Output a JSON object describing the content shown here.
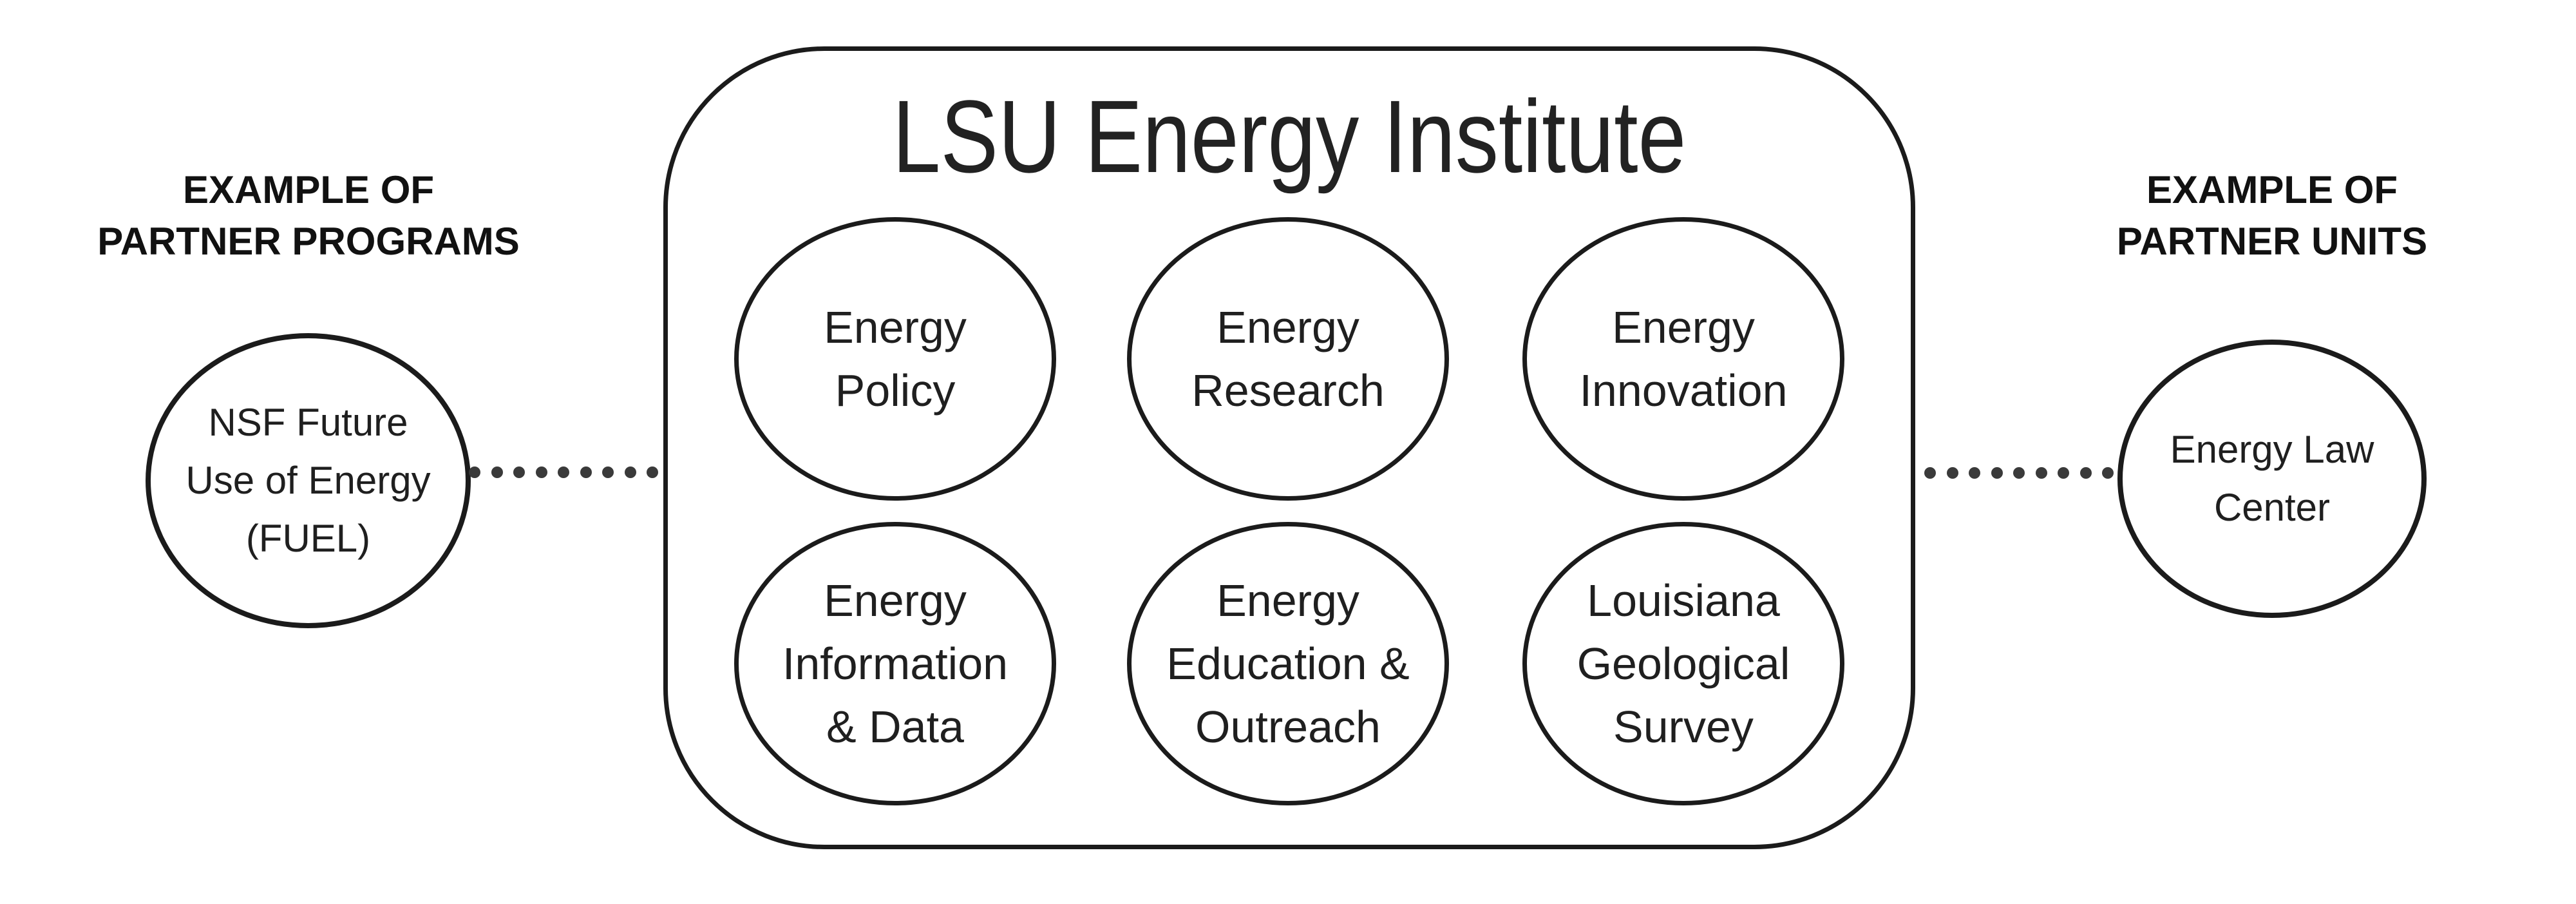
{
  "diagram": {
    "institute": {
      "title": "LSU Energy Institute",
      "areas": [
        {
          "label": "Energy\nPolicy"
        },
        {
          "label": "Energy\nResearch"
        },
        {
          "label": "Energy\nInnovation"
        },
        {
          "label": "Energy\nInformation\n& Data"
        },
        {
          "label": "Energy\nEducation &\nOutreach"
        },
        {
          "label": "Louisiana\nGeological\nSurvey"
        }
      ]
    },
    "left_partner": {
      "heading": "EXAMPLE OF\nPARTNER PROGRAMS",
      "circle_label": "NSF Future\nUse of Energy\n(FUEL)"
    },
    "right_partner": {
      "heading": "EXAMPLE OF\nPARTNER UNITS",
      "circle_label": "Energy Law\nCenter"
    },
    "connectors": {
      "dot_count": 9
    },
    "colors": {
      "ink": "#1b1b1b",
      "dot": "#3a3a3a",
      "background": "#ffffff"
    }
  }
}
